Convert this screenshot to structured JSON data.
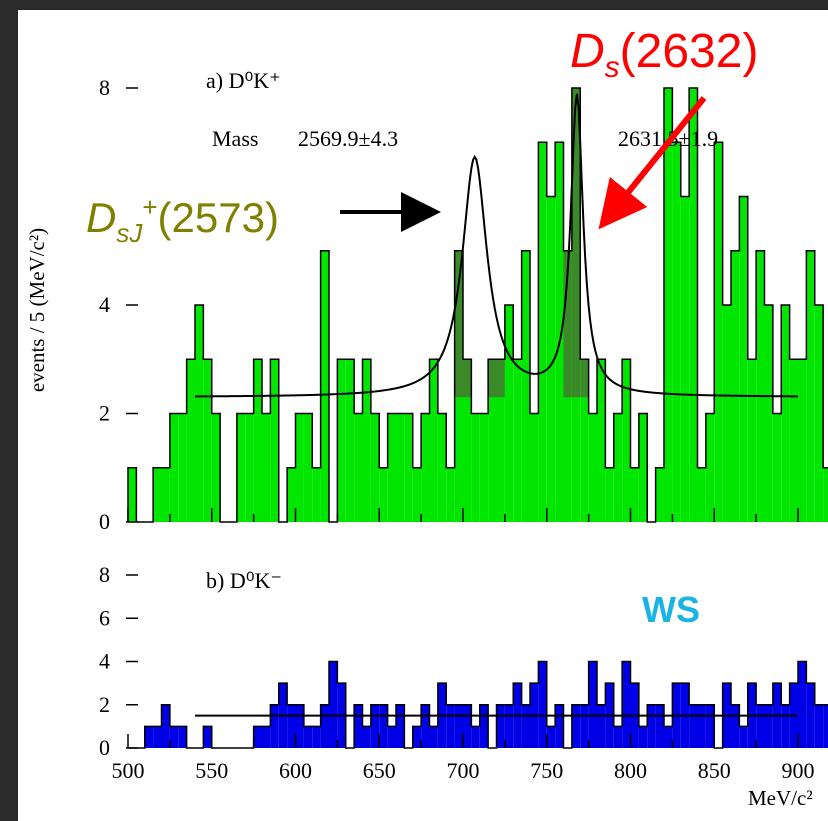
{
  "chart_data": [
    {
      "type": "bar",
      "panel": "a",
      "title": "a) D⁰K⁺",
      "ylabel": "events / 5 (MeV/c²)",
      "ylim": [
        0,
        8
      ],
      "yticks": [
        "0",
        "2",
        "4",
        "8"
      ],
      "x_start": 500,
      "bin_width": 5,
      "series": [
        {
          "values": [
            1,
            0,
            0,
            1,
            1,
            2,
            2,
            3,
            4,
            3,
            2,
            0,
            0,
            2,
            2,
            3,
            2,
            3,
            0,
            1,
            2,
            2,
            1,
            5,
            0,
            3,
            3,
            2,
            3,
            2,
            1,
            2,
            2,
            2,
            1,
            2,
            3,
            2,
            1,
            5,
            3,
            2,
            2,
            3,
            3,
            4,
            3,
            5,
            2,
            7,
            6,
            7,
            5,
            8,
            3,
            2,
            3,
            1,
            2,
            3,
            1,
            2,
            0,
            1,
            8,
            7,
            6,
            8,
            1,
            2,
            7,
            4,
            5,
            6,
            3,
            5,
            4,
            2,
            4,
            3,
            3,
            5,
            4,
            1,
            2,
            5,
            2,
            1,
            2,
            0,
            1,
            4,
            3,
            3,
            1,
            2,
            0,
            3,
            2,
            1,
            2,
            3
          ]
        }
      ],
      "fit_mean_1": 2569.9,
      "fit_mean_2": 2631.5,
      "background_level": 2.3,
      "annotations": {
        "mass_label": "Mass",
        "mass1": "2569.9±4.3",
        "mass2": "2631.5±1.9",
        "ds2573": "D",
        "ds2573_sub": "sJ",
        "ds2573_sup": "+",
        "ds2573_paren": "(2573)",
        "ds2632": "D",
        "ds2632_sub": "s",
        "ds2632_paren": "(2632)"
      },
      "colors": {
        "fill": "#00e600",
        "peak_fill": "#3a8a2a",
        "fit_line": "#000000",
        "ds2573": "#808000",
        "ds2632": "#ff0000"
      }
    },
    {
      "type": "bar",
      "panel": "b",
      "title": "b) D⁰K⁻",
      "ylim": [
        0,
        8
      ],
      "yticks": [
        "0",
        "2",
        "4",
        "6",
        "8"
      ],
      "x_start": 500,
      "bin_width": 5,
      "series": [
        {
          "values": [
            0,
            0,
            1,
            1,
            2,
            1,
            1,
            0,
            0,
            1,
            0,
            0,
            0,
            0,
            0,
            1,
            1,
            2,
            3,
            2,
            2,
            1,
            1,
            2,
            4,
            3,
            0,
            2,
            1,
            2,
            2,
            1,
            2,
            0,
            1,
            2,
            1,
            3,
            2,
            2,
            2,
            1,
            2,
            0,
            2,
            2,
            3,
            2,
            3,
            4,
            1,
            2,
            0,
            2,
            2,
            4,
            2,
            3,
            1,
            4,
            3,
            1,
            2,
            2,
            1,
            3,
            3,
            2,
            2,
            2,
            0,
            3,
            2,
            1,
            3,
            2,
            2,
            3,
            2,
            3,
            4,
            3,
            2,
            2,
            1,
            2,
            1,
            3,
            2,
            2,
            4,
            1,
            2,
            2,
            0,
            1,
            3,
            2,
            1,
            1,
            2,
            4
          ],
          "fit_level": 1.5
        }
      ],
      "xlim": [
        500,
        900
      ],
      "xticks": [
        "500",
        "550",
        "600",
        "650",
        "700",
        "750",
        "800",
        "850",
        "900"
      ],
      "xlabel": "MeV/c²",
      "annotations": {
        "ws": "WS"
      },
      "colors": {
        "fill": "#0000e6",
        "fit_line": "#000000",
        "ws": "#1ab3e6"
      }
    }
  ]
}
